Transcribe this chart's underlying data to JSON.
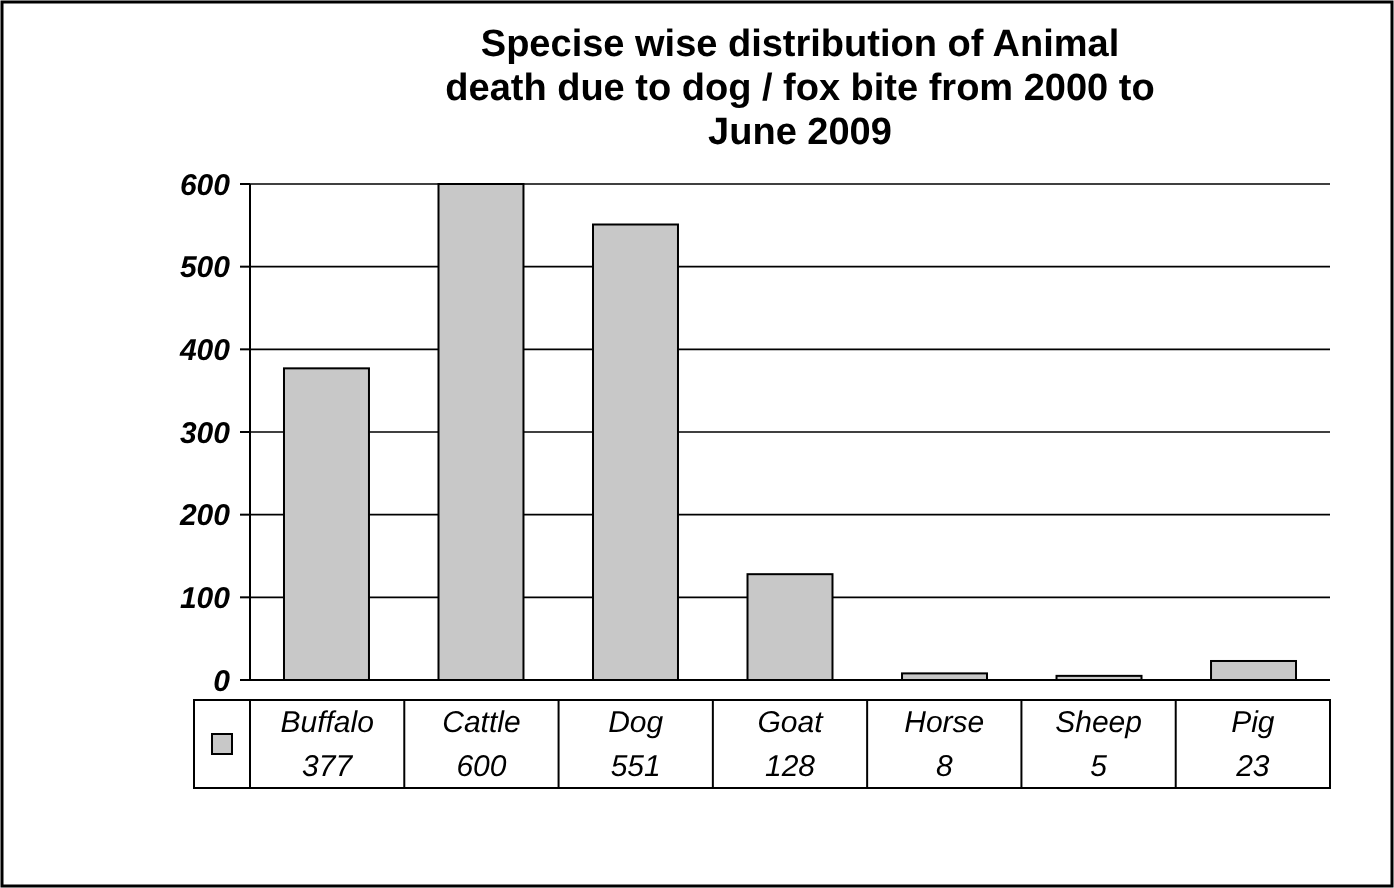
{
  "chart_data": {
    "type": "bar",
    "title": "Specise wise distribution of Animal death due to dog / fox bite from 2000 to June 2009",
    "categories": [
      "Buffalo",
      "Cattle",
      "Dog",
      "Goat",
      "Horse",
      "Sheep",
      "Pig"
    ],
    "values": [
      377,
      600,
      551,
      128,
      8,
      5,
      23
    ],
    "color": "#c8c8c8",
    "ylim": [
      0,
      600
    ],
    "yticks": [
      0,
      100,
      200,
      300,
      400,
      500,
      600
    ],
    "grid": "y",
    "data_labels": true
  }
}
